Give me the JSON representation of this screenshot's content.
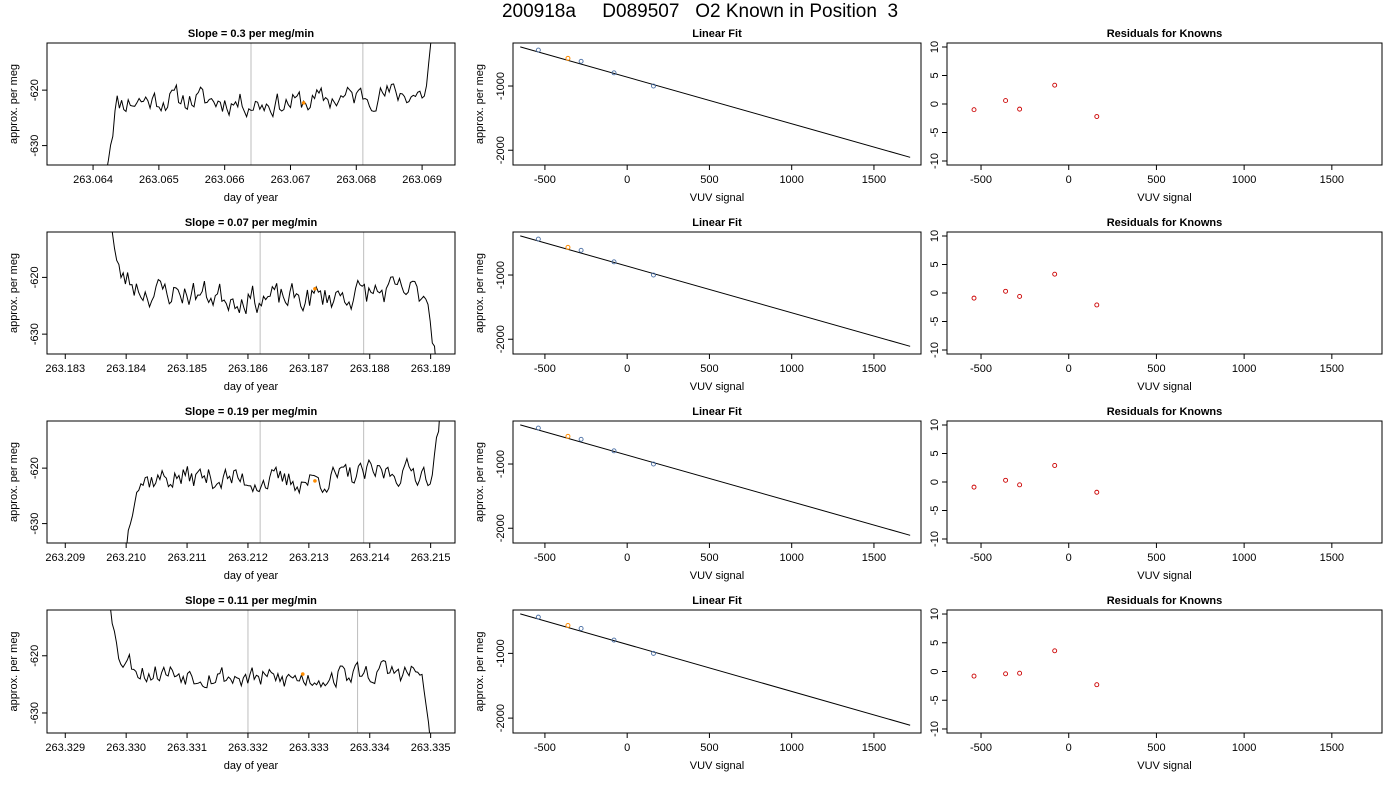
{
  "title": "200918a     D089507   O2 Known in Position  3",
  "colors": {
    "line": "#000000",
    "known_fit_point": "#4a6fa5",
    "current_point": "#ff8c00",
    "residual_point": "#cc0000",
    "vline": "#bebebe"
  },
  "chart_data": [
    {
      "type": "line",
      "panel": "time-series",
      "row": 1,
      "title": "Slope =  0.3  per meg/min",
      "xlabel": "day of year",
      "ylabel": "approx. per meg",
      "xlim": [
        263.0633,
        263.0695
      ],
      "ylim": [
        -633.5,
        -611.5
      ],
      "xticks": [
        263.064,
        263.065,
        263.066,
        263.067,
        263.068,
        263.069
      ],
      "xtick_labels": [
        "263.064",
        "263.065",
        "263.066",
        "263.067",
        "263.068",
        "263.069"
      ],
      "yticks": [
        -620,
        -630
      ],
      "ytick_labels": [
        "-620",
        "-630"
      ],
      "vlines": [
        263.0664,
        263.0681
      ],
      "series_start": 263.0642,
      "series_end": 263.0692,
      "level": -622.5,
      "jitter": 2.2,
      "curve": "rise",
      "seed": 11,
      "highlight": {
        "x": 263.0672,
        "y": -622.3
      }
    },
    {
      "type": "scatter",
      "panel": "linear-fit",
      "row": 1,
      "title": "Linear Fit",
      "xlabel": "VUV signal",
      "ylabel": "approx. per meg",
      "xlim": [
        -694,
        1786
      ],
      "ylim": [
        -2230,
        -330
      ],
      "xticks": [
        -500,
        0,
        500,
        1000,
        1500
      ],
      "xtick_labels": [
        "-500",
        "0",
        "500",
        "1000",
        "1500"
      ],
      "yticks": [
        -1000,
        -2000
      ],
      "ytick_labels": [
        "-1000",
        "-2000"
      ],
      "points": [
        [
          -540,
          -440
        ],
        [
          -280,
          -615
        ],
        [
          -80,
          -795
        ],
        [
          160,
          -1000
        ]
      ],
      "highlight": [
        -360,
        -570
      ],
      "fit": {
        "x": [
          -650,
          1720
        ],
        "y": [
          -390,
          -2110
        ]
      }
    },
    {
      "type": "scatter",
      "panel": "residuals",
      "row": 1,
      "title": "Residuals for Knowns",
      "xlabel": "VUV signal",
      "ylabel": "",
      "xlim": [
        -694,
        1786
      ],
      "ylim": [
        -10.7,
        10.7
      ],
      "xticks": [
        -500,
        0,
        500,
        1000,
        1500
      ],
      "xtick_labels": [
        "-500",
        "0",
        "500",
        "1000",
        "1500"
      ],
      "yticks": [
        10,
        5,
        0,
        -5,
        -10
      ],
      "ytick_labels": [
        "10",
        "5",
        "0",
        "-5",
        "-10"
      ],
      "points": [
        [
          -540,
          -1.0
        ],
        [
          -360,
          0.6
        ],
        [
          -280,
          -0.9
        ],
        [
          -80,
          3.3
        ],
        [
          160,
          -2.2
        ]
      ]
    },
    {
      "type": "line",
      "panel": "time-series",
      "row": 2,
      "title": "Slope =  0.07  per meg/min",
      "xlabel": "day of year",
      "ylabel": "approx. per meg",
      "xlim": [
        263.1827,
        263.1894
      ],
      "ylim": [
        -633.5,
        -612.0
      ],
      "xticks": [
        263.183,
        263.184,
        263.185,
        263.186,
        263.187,
        263.188,
        263.189
      ],
      "xtick_labels": [
        "263.183",
        "263.184",
        "263.185",
        "263.186",
        "263.187",
        "263.188",
        "263.189"
      ],
      "yticks": [
        -620,
        -630
      ],
      "ytick_labels": [
        "-620",
        "-630"
      ],
      "vlines": [
        263.1862,
        263.1879
      ],
      "series_start": 263.1837,
      "series_end": 263.1891,
      "level": -623.2,
      "jitter": 2.5,
      "curve": "drop",
      "seed": 23,
      "highlight": {
        "x": 263.1871,
        "y": -622.0
      }
    },
    {
      "type": "scatter",
      "panel": "linear-fit",
      "row": 2,
      "title": "Linear Fit",
      "xlabel": "VUV signal",
      "ylabel": "approx. per meg",
      "xlim": [
        -694,
        1786
      ],
      "ylim": [
        -2230,
        -330
      ],
      "xticks": [
        -500,
        0,
        500,
        1000,
        1500
      ],
      "xtick_labels": [
        "-500",
        "0",
        "500",
        "1000",
        "1500"
      ],
      "yticks": [
        -1000,
        -2000
      ],
      "ytick_labels": [
        "-1000",
        "-2000"
      ],
      "points": [
        [
          -540,
          -440
        ],
        [
          -280,
          -615
        ],
        [
          -80,
          -795
        ],
        [
          160,
          -1000
        ]
      ],
      "highlight": [
        -360,
        -570
      ],
      "fit": {
        "x": [
          -650,
          1720
        ],
        "y": [
          -390,
          -2110
        ]
      }
    },
    {
      "type": "scatter",
      "panel": "residuals",
      "row": 2,
      "title": "Residuals for Knowns",
      "xlabel": "VUV signal",
      "ylabel": "",
      "xlim": [
        -694,
        1786
      ],
      "ylim": [
        -10.7,
        10.7
      ],
      "xticks": [
        -500,
        0,
        500,
        1000,
        1500
      ],
      "xtick_labels": [
        "-500",
        "0",
        "500",
        "1000",
        "1500"
      ],
      "yticks": [
        10,
        5,
        0,
        -5,
        -10
      ],
      "ytick_labels": [
        "10",
        "5",
        "0",
        "-5",
        "-10"
      ],
      "points": [
        [
          -540,
          -0.9
        ],
        [
          -360,
          0.3
        ],
        [
          -280,
          -0.6
        ],
        [
          -80,
          3.3
        ],
        [
          160,
          -2.1
        ]
      ]
    },
    {
      "type": "line",
      "panel": "time-series",
      "row": 3,
      "title": "Slope =  0.19  per meg/min",
      "xlabel": "day of year",
      "ylabel": "approx. per meg",
      "xlim": [
        263.2087,
        263.2154
      ],
      "ylim": [
        -633.5,
        -611.5
      ],
      "xticks": [
        263.209,
        263.21,
        263.211,
        263.212,
        263.213,
        263.214,
        263.215
      ],
      "xtick_labels": [
        "263.209",
        "263.210",
        "263.211",
        "263.212",
        "263.213",
        "263.214",
        "263.215"
      ],
      "yticks": [
        -620,
        -630
      ],
      "ytick_labels": [
        "-620",
        "-630"
      ],
      "vlines": [
        263.2122,
        263.2139
      ],
      "series_start": 263.21,
      "series_end": 263.2152,
      "level": -622.5,
      "jitter": 2.2,
      "curve": "rise",
      "seed": 37,
      "highlight": {
        "x": 263.2131,
        "y": -622.3
      }
    },
    {
      "type": "scatter",
      "panel": "linear-fit",
      "row": 3,
      "title": "Linear Fit",
      "xlabel": "VUV signal",
      "ylabel": "approx. per meg",
      "xlim": [
        -694,
        1786
      ],
      "ylim": [
        -2230,
        -330
      ],
      "xticks": [
        -500,
        0,
        500,
        1000,
        1500
      ],
      "xtick_labels": [
        "-500",
        "0",
        "500",
        "1000",
        "1500"
      ],
      "yticks": [
        -1000,
        -2000
      ],
      "ytick_labels": [
        "-1000",
        "-2000"
      ],
      "points": [
        [
          -540,
          -440
        ],
        [
          -280,
          -615
        ],
        [
          -80,
          -795
        ],
        [
          160,
          -1000
        ]
      ],
      "highlight": [
        -360,
        -570
      ],
      "fit": {
        "x": [
          -650,
          1720
        ],
        "y": [
          -390,
          -2110
        ]
      }
    },
    {
      "type": "scatter",
      "panel": "residuals",
      "row": 3,
      "title": "Residuals for Knowns",
      "xlabel": "VUV signal",
      "ylabel": "",
      "xlim": [
        -694,
        1786
      ],
      "ylim": [
        -10.7,
        10.7
      ],
      "xticks": [
        -500,
        0,
        500,
        1000,
        1500
      ],
      "xtick_labels": [
        "-500",
        "0",
        "500",
        "1000",
        "1500"
      ],
      "yticks": [
        10,
        5,
        0,
        -5,
        -10
      ],
      "ytick_labels": [
        "10",
        "5",
        "0",
        "-5",
        "-10"
      ],
      "points": [
        [
          -540,
          -0.9
        ],
        [
          -360,
          0.3
        ],
        [
          -280,
          -0.5
        ],
        [
          -80,
          2.9
        ],
        [
          160,
          -1.8
        ]
      ]
    },
    {
      "type": "line",
      "panel": "time-series",
      "row": 4,
      "title": "Slope =  0.11  per meg/min",
      "xlabel": "day of year",
      "ylabel": "approx. per meg",
      "xlim": [
        263.3287,
        263.3354
      ],
      "ylim": [
        -633.5,
        -612.0
      ],
      "xticks": [
        263.329,
        263.33,
        263.331,
        263.332,
        263.333,
        263.334,
        263.335
      ],
      "xtick_labels": [
        "263.329",
        "263.330",
        "263.331",
        "263.332",
        "263.333",
        "263.334",
        "263.335"
      ],
      "yticks": [
        -620,
        -630
      ],
      "ytick_labels": [
        "-620",
        "-630"
      ],
      "vlines": [
        263.332,
        263.3338
      ],
      "series_start": 263.3297,
      "series_end": 263.335,
      "level": -623.5,
      "jitter": 2.0,
      "curve": "drop",
      "seed": 53,
      "highlight": {
        "x": 263.3329,
        "y": -623.2
      }
    },
    {
      "type": "scatter",
      "panel": "linear-fit",
      "row": 4,
      "title": "Linear Fit",
      "xlabel": "VUV signal",
      "ylabel": "approx. per meg",
      "xlim": [
        -694,
        1786
      ],
      "ylim": [
        -2230,
        -330
      ],
      "xticks": [
        -500,
        0,
        500,
        1000,
        1500
      ],
      "xtick_labels": [
        "-500",
        "0",
        "500",
        "1000",
        "1500"
      ],
      "yticks": [
        -1000,
        -2000
      ],
      "ytick_labels": [
        "-1000",
        "-2000"
      ],
      "points": [
        [
          -540,
          -440
        ],
        [
          -280,
          -615
        ],
        [
          -80,
          -795
        ],
        [
          160,
          -1000
        ]
      ],
      "highlight": [
        -360,
        -570
      ],
      "fit": {
        "x": [
          -650,
          1720
        ],
        "y": [
          -390,
          -2110
        ]
      }
    },
    {
      "type": "scatter",
      "panel": "residuals",
      "row": 4,
      "title": "Residuals for Knowns",
      "xlabel": "VUV signal",
      "ylabel": "",
      "xlim": [
        -694,
        1786
      ],
      "ylim": [
        -10.7,
        10.7
      ],
      "xticks": [
        -500,
        0,
        500,
        1000,
        1500
      ],
      "xtick_labels": [
        "-500",
        "0",
        "500",
        "1000",
        "1500"
      ],
      "yticks": [
        10,
        5,
        0,
        -5,
        -10
      ],
      "ytick_labels": [
        "10",
        "5",
        "0",
        "-5",
        "-10"
      ],
      "points": [
        [
          -540,
          -0.8
        ],
        [
          -360,
          -0.4
        ],
        [
          -280,
          -0.3
        ],
        [
          -80,
          3.6
        ],
        [
          160,
          -2.3
        ]
      ]
    }
  ]
}
